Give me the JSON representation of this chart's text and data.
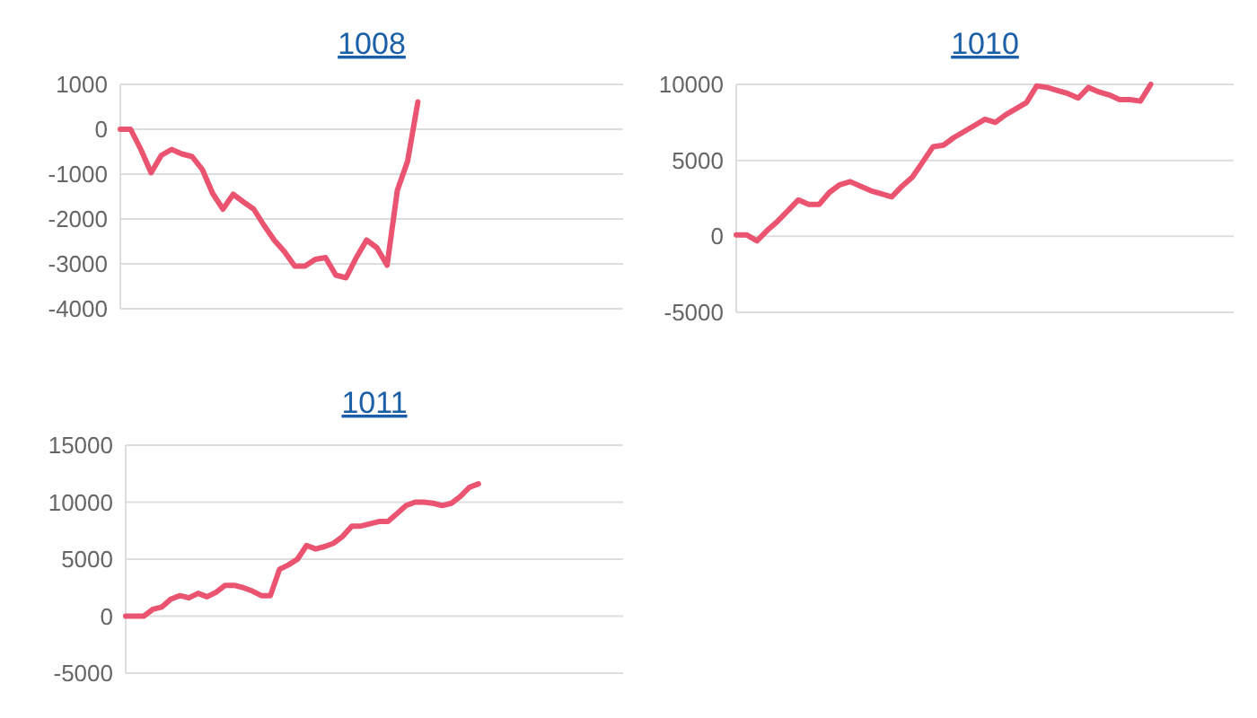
{
  "chart_data": [
    {
      "type": "line",
      "title": "1008",
      "categories": [
        null,
        null,
        null,
        null,
        null,
        null,
        null,
        null,
        null,
        null,
        null,
        null,
        null,
        null,
        null,
        null,
        null,
        null,
        null,
        null,
        null,
        null,
        null,
        null,
        null,
        null,
        null,
        null,
        null,
        null,
        null,
        null,
        null,
        null,
        null,
        null,
        null,
        null,
        null,
        null,
        null,
        null,
        null,
        null,
        null,
        null,
        null,
        null,
        null,
        null
      ],
      "series": [
        {
          "color": "#ea5470",
          "values": [
            0,
            0,
            -450,
            -970,
            -580,
            -450,
            -550,
            -610,
            -900,
            -1430,
            -1780,
            -1450,
            -1620,
            -1780,
            -2140,
            -2470,
            -2730,
            -3050,
            -3050,
            -2900,
            -2860,
            -3250,
            -3310,
            -2860,
            -2470,
            -2640,
            -3030,
            -1360,
            -710,
            610,
            null,
            null,
            null,
            null,
            null,
            null,
            null,
            null,
            null,
            null,
            null,
            null,
            null,
            null,
            null,
            null,
            null,
            null,
            null,
            null
          ]
        }
      ],
      "ylim": [
        -4000,
        1000
      ],
      "yticks": [
        -4000,
        -3000,
        -2000,
        -1000,
        0,
        1000
      ],
      "grid": "y",
      "tick_labels": "y",
      "marker": "none"
    },
    {
      "type": "line",
      "title": "1010",
      "categories": [
        null,
        null,
        null,
        null,
        null,
        null,
        null,
        null,
        null,
        null,
        null,
        null,
        null,
        null,
        null,
        null,
        null,
        null,
        null,
        null,
        null,
        null,
        null,
        null,
        null,
        null,
        null,
        null,
        null,
        null,
        null,
        null,
        null,
        null,
        null,
        null,
        null,
        null,
        null,
        null,
        null,
        null,
        null,
        null,
        null,
        null,
        null,
        null,
        null
      ],
      "series": [
        {
          "color": "#ea5470",
          "values": [
            100,
            100,
            -300,
            400,
            1000,
            1700,
            2400,
            2100,
            2100,
            2900,
            3400,
            3600,
            3300,
            3000,
            2800,
            2600,
            3300,
            3900,
            4900,
            5900,
            6000,
            6500,
            6900,
            7300,
            7700,
            7500,
            8000,
            8400,
            8800,
            9900,
            9800,
            9600,
            9400,
            9100,
            9800,
            9500,
            9300,
            9000,
            9000,
            8900,
            10000,
            null,
            null,
            null,
            null,
            null,
            null,
            null,
            null
          ]
        }
      ],
      "ylim": [
        -5000,
        10000
      ],
      "yticks": [
        -5000,
        0,
        5000,
        10000
      ],
      "grid": "y",
      "tick_labels": "y",
      "marker": "none"
    },
    {
      "type": "line",
      "title": "1011",
      "categories": [
        null,
        null,
        null,
        null,
        null,
        null,
        null,
        null,
        null,
        null,
        null,
        null,
        null,
        null,
        null,
        null,
        null,
        null,
        null,
        null,
        null,
        null,
        null,
        null,
        null,
        null,
        null,
        null,
        null,
        null,
        null,
        null,
        null,
        null,
        null,
        null,
        null,
        null,
        null,
        null,
        null,
        null,
        null,
        null,
        null,
        null,
        null,
        null,
        null,
        null,
        null,
        null,
        null,
        null,
        null,
        null
      ],
      "series": [
        {
          "color": "#ea5470",
          "values": [
            0,
            0,
            0,
            600,
            800,
            1500,
            1800,
            1600,
            2000,
            1700,
            2100,
            2700,
            2700,
            2500,
            2200,
            1800,
            1800,
            4100,
            4500,
            5000,
            6200,
            5900,
            6100,
            6400,
            7000,
            7900,
            7900,
            8100,
            8300,
            8300,
            9000,
            9700,
            10000,
            10000,
            9900,
            9700,
            9900,
            10500,
            11300,
            11600,
            null,
            null,
            null,
            null,
            null,
            null,
            null,
            null,
            null,
            null,
            null,
            null,
            null,
            null,
            null,
            null
          ]
        }
      ],
      "ylim": [
        -5000,
        15000
      ],
      "yticks": [
        -5000,
        0,
        5000,
        10000,
        15000
      ],
      "grid": "y",
      "tick_labels": "y",
      "marker": "none"
    }
  ]
}
